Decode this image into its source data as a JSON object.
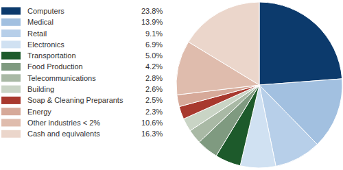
{
  "chart_data": {
    "type": "pie",
    "categories": [
      "Computers",
      "Medical",
      "Retail",
      "Electronics",
      "Transportation",
      "Food Production",
      "Telecommunications",
      "Building",
      "Soap & Cleaning Preparants",
      "Energy",
      "Other industries < 2%",
      "Cash and equivalents"
    ],
    "values": [
      23.8,
      13.9,
      9.1,
      6.9,
      5.0,
      4.2,
      2.8,
      2.6,
      2.5,
      2.3,
      10.6,
      16.3
    ],
    "value_labels": [
      "23.8%",
      "13.9%",
      "9.1%",
      "6.9%",
      "5.0%",
      "4.2%",
      "2.8%",
      "2.6%",
      "2.5%",
      "2.3%",
      "10.6%",
      "16.3%"
    ],
    "colors": [
      "#0c3a6c",
      "#a2c0e0",
      "#b7cfe9",
      "#d0e1f2",
      "#1d5a2b",
      "#7f9a80",
      "#a9b9a5",
      "#c9d4c5",
      "#a8392e",
      "#d6a999",
      "#dfbcad",
      "#ebd6cb"
    ],
    "legend": "left",
    "data_labels": false
  }
}
